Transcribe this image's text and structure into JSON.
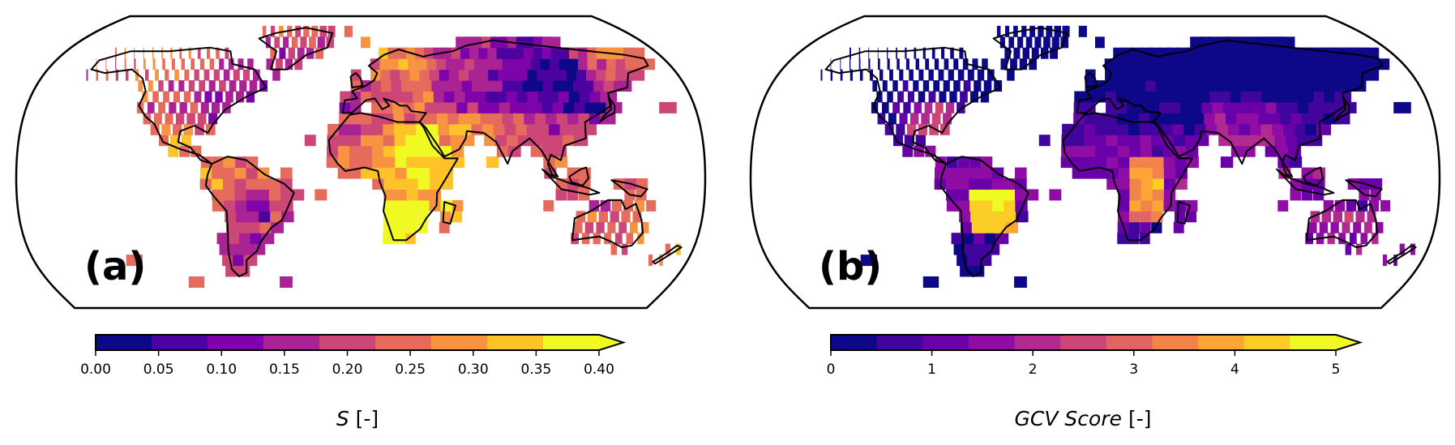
{
  "panels": [
    {
      "letter": "(a)",
      "variable": "S",
      "unit": "[-]",
      "colorbar": {
        "ticks": [
          "0.00",
          "0.05",
          "0.10",
          "0.15",
          "0.20",
          "0.25",
          "0.30",
          "0.35",
          "0.40"
        ],
        "colors": [
          "#0d0887",
          "#4c02a1",
          "#7e03a8",
          "#a92395",
          "#cc4778",
          "#e56b5d",
          "#f89441",
          "#fdc328",
          "#f0f921"
        ],
        "extend": "max"
      }
    },
    {
      "letter": "(b)",
      "variable": "GCV Score",
      "unit": "[-]",
      "colorbar": {
        "ticks": [
          "0",
          "1",
          "2",
          "3",
          "4",
          "5"
        ],
        "colors": [
          "#0d0887",
          "#41049d",
          "#6a00a8",
          "#8f0da4",
          "#b12a90",
          "#cc4778",
          "#e16462",
          "#f2844b",
          "#fca636",
          "#fcce25",
          "#f0f921"
        ],
        "extend": "max"
      }
    }
  ],
  "projection": "Robinson",
  "colormap": "plasma"
}
